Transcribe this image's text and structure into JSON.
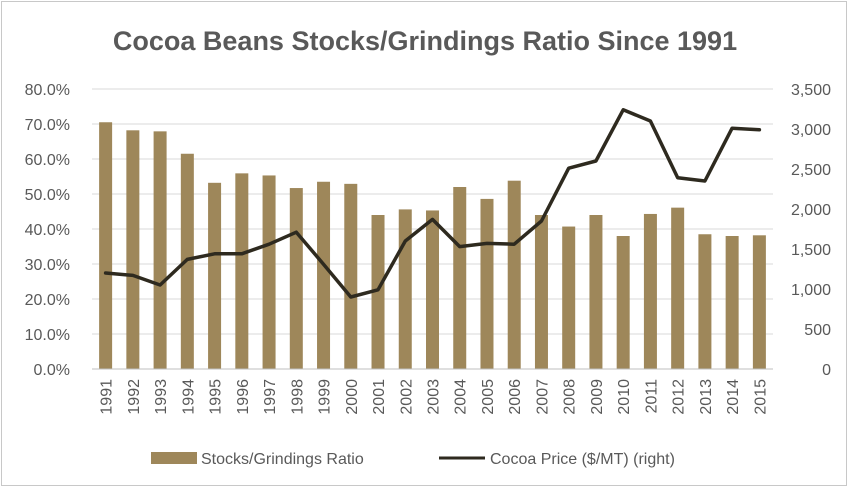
{
  "chart_data": {
    "type": "bar",
    "title": "Cocoa Beans Stocks/Grindings Ratio Since 1991",
    "categories": [
      "1991",
      "1992",
      "1993",
      "1994",
      "1995",
      "1996",
      "1997",
      "1998",
      "1999",
      "2000",
      "2001",
      "2002",
      "2003",
      "2004",
      "2005",
      "2006",
      "2007",
      "2008",
      "2009",
      "2010",
      "2011",
      "2012",
      "2013",
      "2014",
      "2015"
    ],
    "series": [
      {
        "name": "Stocks/Grindings Ratio",
        "type": "bar",
        "axis": "left",
        "color": "#9e875a",
        "values": [
          70.5,
          68.2,
          67.9,
          61.5,
          53.2,
          55.9,
          55.3,
          51.7,
          53.5,
          52.9,
          44.0,
          45.6,
          45.3,
          52.0,
          48.6,
          53.8,
          44.0,
          40.7,
          44.0,
          38.0,
          44.3,
          46.1,
          38.5,
          38.0,
          38.2
        ]
      },
      {
        "name": "Cocoa Price ($/MT) (right)",
        "type": "line",
        "axis": "right",
        "color": "#2e2a1f",
        "values": [
          1200,
          1170,
          1050,
          1370,
          1440,
          1440,
          1560,
          1710,
          1310,
          900,
          990,
          1600,
          1870,
          1530,
          1570,
          1560,
          1850,
          2510,
          2600,
          3240,
          3100,
          2390,
          2350,
          3010,
          2990
        ]
      }
    ],
    "y_left": {
      "min": 0,
      "max": 80,
      "step": 10,
      "tick_labels": [
        "0.0%",
        "10.0%",
        "20.0%",
        "30.0%",
        "40.0%",
        "50.0%",
        "60.0%",
        "70.0%",
        "80.0%"
      ]
    },
    "y_right": {
      "min": 0,
      "max": 3500,
      "step": 500,
      "tick_labels": [
        "0",
        "500",
        "1,000",
        "1,500",
        "2,000",
        "2,500",
        "3,000",
        "3,500"
      ]
    },
    "grid": true,
    "legend_position": "bottom"
  }
}
